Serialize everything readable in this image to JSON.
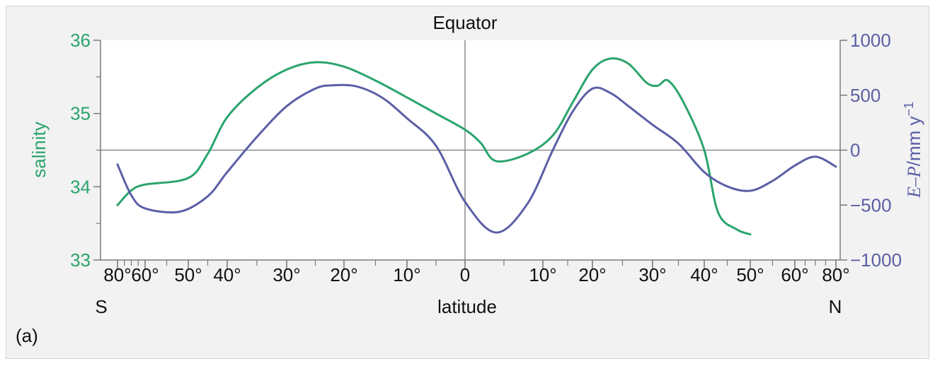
{
  "chart_data": {
    "type": "line",
    "title": "Equator",
    "xlabel": "latitude",
    "x_end_labels": {
      "left": "S",
      "right": "N"
    },
    "panel_label": "(a)",
    "x_ticks": [
      {
        "lat": -80,
        "label": "80°"
      },
      {
        "lat": -60,
        "label": "60°"
      },
      {
        "lat": -50,
        "label": "50°"
      },
      {
        "lat": -40,
        "label": "40°"
      },
      {
        "lat": -30,
        "label": "30°"
      },
      {
        "lat": -20,
        "label": "20°"
      },
      {
        "lat": -10,
        "label": "10°"
      },
      {
        "lat": 0,
        "label": "0"
      },
      {
        "lat": 10,
        "label": "10°"
      },
      {
        "lat": 20,
        "label": "20°"
      },
      {
        "lat": 30,
        "label": "30°"
      },
      {
        "lat": 40,
        "label": "40°"
      },
      {
        "lat": 50,
        "label": "50°"
      },
      {
        "lat": 60,
        "label": "60°"
      },
      {
        "lat": 80,
        "label": "80°"
      }
    ],
    "y_left": {
      "label": "salinity",
      "ylim": [
        33,
        36
      ],
      "ticks": [
        {
          "value": 33,
          "label": "33"
        },
        {
          "value": 34,
          "label": "34"
        },
        {
          "value": 35,
          "label": "35"
        },
        {
          "value": 36,
          "label": "36"
        }
      ],
      "color": "#2aa46c"
    },
    "y_right": {
      "label_italic": "E–P",
      "label_rest": "/mm y",
      "label_sup": "−1",
      "ylim": [
        -1000,
        1000
      ],
      "ticks": [
        {
          "value": 1000,
          "label": "1000"
        },
        {
          "value": 500,
          "label": "500"
        },
        {
          "value": 0,
          "label": "0"
        },
        {
          "value": -500,
          "label": "−500"
        },
        {
          "value": -1000,
          "label": "−1000"
        }
      ],
      "color": "#5c5fa6"
    },
    "series": [
      {
        "axis": "left",
        "color": "#2aa46c",
        "points": [
          [
            -80,
            33.75
          ],
          [
            -70,
            33.95
          ],
          [
            -60,
            34.03
          ],
          [
            -50,
            34.12
          ],
          [
            -45,
            34.45
          ],
          [
            -40,
            34.95
          ],
          [
            -35,
            35.35
          ],
          [
            -30,
            35.6
          ],
          [
            -25,
            35.7
          ],
          [
            -20,
            35.64
          ],
          [
            -15,
            35.45
          ],
          [
            -10,
            35.22
          ],
          [
            -5,
            35.0
          ],
          [
            0,
            34.78
          ],
          [
            2,
            34.6
          ],
          [
            4,
            34.35
          ],
          [
            8,
            34.45
          ],
          [
            12,
            34.7
          ],
          [
            16,
            35.15
          ],
          [
            20,
            35.6
          ],
          [
            23,
            35.75
          ],
          [
            26,
            35.68
          ],
          [
            29,
            35.42
          ],
          [
            31,
            35.38
          ],
          [
            33,
            35.45
          ],
          [
            36,
            35.15
          ],
          [
            40,
            34.5
          ],
          [
            43,
            33.65
          ],
          [
            47,
            33.42
          ],
          [
            50,
            33.35
          ]
        ]
      },
      {
        "axis": "right",
        "color": "#5c5fa6",
        "points": [
          [
            -80,
            -130
          ],
          [
            -70,
            -410
          ],
          [
            -60,
            -530
          ],
          [
            -52,
            -560
          ],
          [
            -45,
            -420
          ],
          [
            -40,
            -200
          ],
          [
            -35,
            120
          ],
          [
            -30,
            400
          ],
          [
            -25,
            560
          ],
          [
            -22,
            590
          ],
          [
            -18,
            580
          ],
          [
            -14,
            480
          ],
          [
            -10,
            290
          ],
          [
            -5,
            40
          ],
          [
            0,
            -470
          ],
          [
            4,
            -750
          ],
          [
            8,
            -490
          ],
          [
            12,
            0
          ],
          [
            16,
            350
          ],
          [
            20,
            560
          ],
          [
            23,
            520
          ],
          [
            26,
            400
          ],
          [
            30,
            230
          ],
          [
            35,
            60
          ],
          [
            40,
            -200
          ],
          [
            45,
            -330
          ],
          [
            50,
            -370
          ],
          [
            55,
            -280
          ],
          [
            60,
            -140
          ],
          [
            70,
            -60
          ],
          [
            80,
            -150
          ]
        ]
      }
    ],
    "grid": false,
    "reference_lines": [
      {
        "orientation": "horizontal",
        "axis": "right",
        "value": 0
      },
      {
        "orientation": "vertical",
        "lat": 0
      }
    ]
  }
}
